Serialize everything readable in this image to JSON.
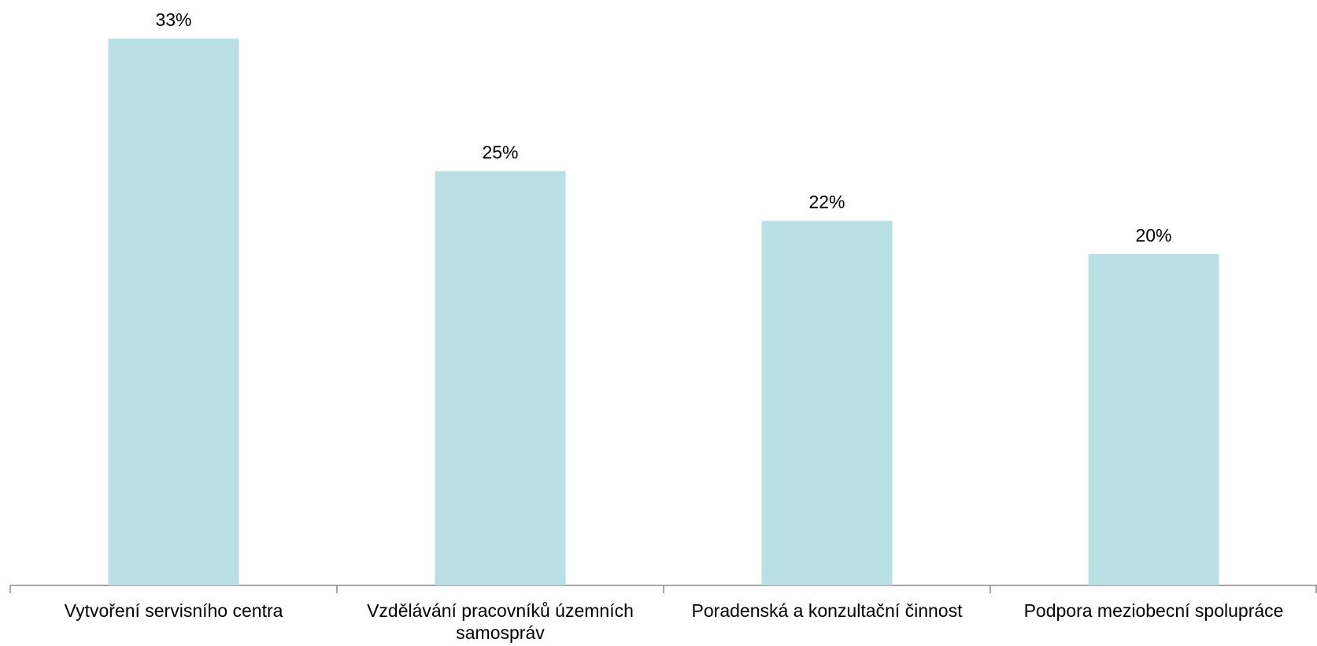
{
  "chart_data": {
    "type": "bar",
    "categories": [
      "Vytvoření servisního centra",
      "Vzdělávání pracovníků územních samospráv",
      "Poradenská a konzultační činnost",
      "Podpora meziobecní spolupráce"
    ],
    "values": [
      33,
      25,
      22,
      20
    ],
    "value_labels": [
      "33%",
      "25%",
      "22%",
      "20%"
    ],
    "color": "#bae0e3",
    "ylim": [
      0,
      35
    ]
  }
}
